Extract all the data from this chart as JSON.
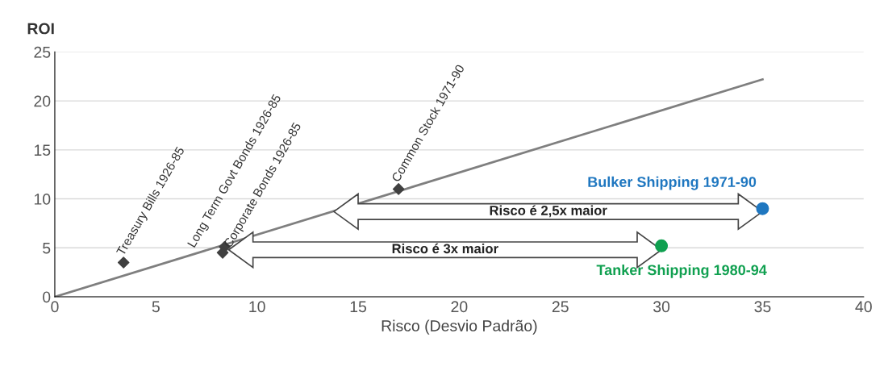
{
  "chart_data": {
    "type": "scatter",
    "ylabel": "ROI",
    "xlabel": "Risco (Desvio Padrão)",
    "xlim": [
      0,
      40
    ],
    "ylim": [
      0,
      25
    ],
    "xticks": [
      0,
      5,
      10,
      15,
      20,
      25,
      30,
      35,
      40
    ],
    "yticks": [
      0,
      5,
      10,
      15,
      20,
      25
    ],
    "grid": "y",
    "series": [
      {
        "type": "line",
        "color": "#7f7f7f",
        "x": [
          0,
          35
        ],
        "values": [
          0,
          22.2
        ],
        "marker": "none"
      },
      {
        "name": "Treasury Bills 1926-85",
        "color": "#404040",
        "x": [
          3.4
        ],
        "values": [
          3.5
        ],
        "marker": "diamond"
      },
      {
        "name": "Long Term Govt Bonds 1926-85",
        "color": "#404040",
        "x": [
          8.4
        ],
        "values": [
          5.1
        ],
        "marker": "diamond"
      },
      {
        "name": "Corporate Bonds 1926-85",
        "color": "#404040",
        "x": [
          8.3
        ],
        "values": [
          4.5
        ],
        "marker": "diamond"
      },
      {
        "name": "Common Stock 1971-90",
        "color": "#404040",
        "x": [
          17
        ],
        "values": [
          11
        ],
        "marker": "diamond"
      },
      {
        "name": "Bulker Shipping 1971-90",
        "color": "#1f77c0",
        "x": [
          35
        ],
        "values": [
          9
        ],
        "marker": "circle"
      },
      {
        "name": "Tanker Shipping 1980-94",
        "color": "#10a050",
        "x": [
          30
        ],
        "values": [
          5.2
        ],
        "marker": "circle"
      }
    ],
    "annotations": [
      "Risco é 2,5x maior",
      "Risco é 3x maior"
    ]
  }
}
